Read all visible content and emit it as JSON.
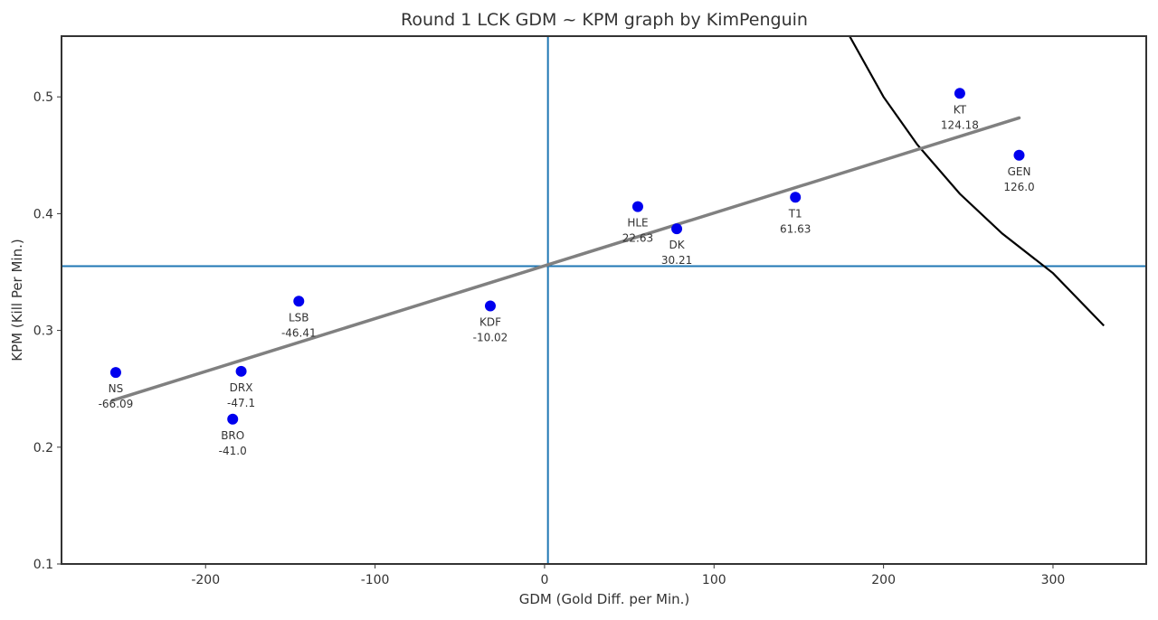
{
  "chart_data": {
    "type": "scatter",
    "title": "Round 1 LCK GDM ~ KPM graph by KimPenguin",
    "xlabel": "GDM (Gold Diff. per Min.)",
    "ylabel": "KPM (Kill Per Min.)",
    "xlim": [
      -285,
      355
    ],
    "ylim": [
      0.1,
      0.552
    ],
    "xticks": [
      -200,
      -100,
      0,
      100,
      200,
      300
    ],
    "yticks": [
      0.1,
      0.2,
      0.3,
      0.4,
      0.5
    ],
    "xtick_labels": [
      "-200",
      "-100",
      "0",
      "100",
      "200",
      "300"
    ],
    "ytick_labels": [
      "0.1",
      "0.2",
      "0.3",
      "0.4",
      "0.5"
    ],
    "grid": false,
    "points": [
      {
        "team": "NS",
        "value": "-66.09",
        "x": -253,
        "y": 0.264
      },
      {
        "team": "DRX",
        "value": "-47.1",
        "x": -179,
        "y": 0.265
      },
      {
        "team": "BRO",
        "value": "-41.0",
        "x": -184,
        "y": 0.224
      },
      {
        "team": "LSB",
        "value": "-46.41",
        "x": -145,
        "y": 0.325
      },
      {
        "team": "KDF",
        "value": "-10.02",
        "x": -32,
        "y": 0.321
      },
      {
        "team": "HLE",
        "value": "22.63",
        "x": 55,
        "y": 0.406
      },
      {
        "team": "DK",
        "value": "30.21",
        "x": 78,
        "y": 0.387
      },
      {
        "team": "T1",
        "value": "61.63",
        "x": 148,
        "y": 0.414
      },
      {
        "team": "KT",
        "value": "124.18",
        "x": 245,
        "y": 0.503
      },
      {
        "team": "GEN",
        "value": "126.0",
        "x": 280,
        "y": 0.45
      }
    ],
    "regression_line": {
      "x": [
        -255,
        280
      ],
      "y": [
        0.24,
        0.482
      ]
    },
    "reference_lines": {
      "vertical_x": 2,
      "horizontal_y": 0.355
    },
    "curve": {
      "x": [
        180,
        200,
        220,
        245,
        270,
        300,
        330
      ],
      "y": [
        0.552,
        0.5,
        0.459,
        0.417,
        0.383,
        0.349,
        0.304
      ]
    },
    "colors": {
      "points": "#0000ee",
      "regression": "#808080",
      "reference": "#1f77b4",
      "curve": "#000000",
      "frame": "#333333"
    }
  }
}
